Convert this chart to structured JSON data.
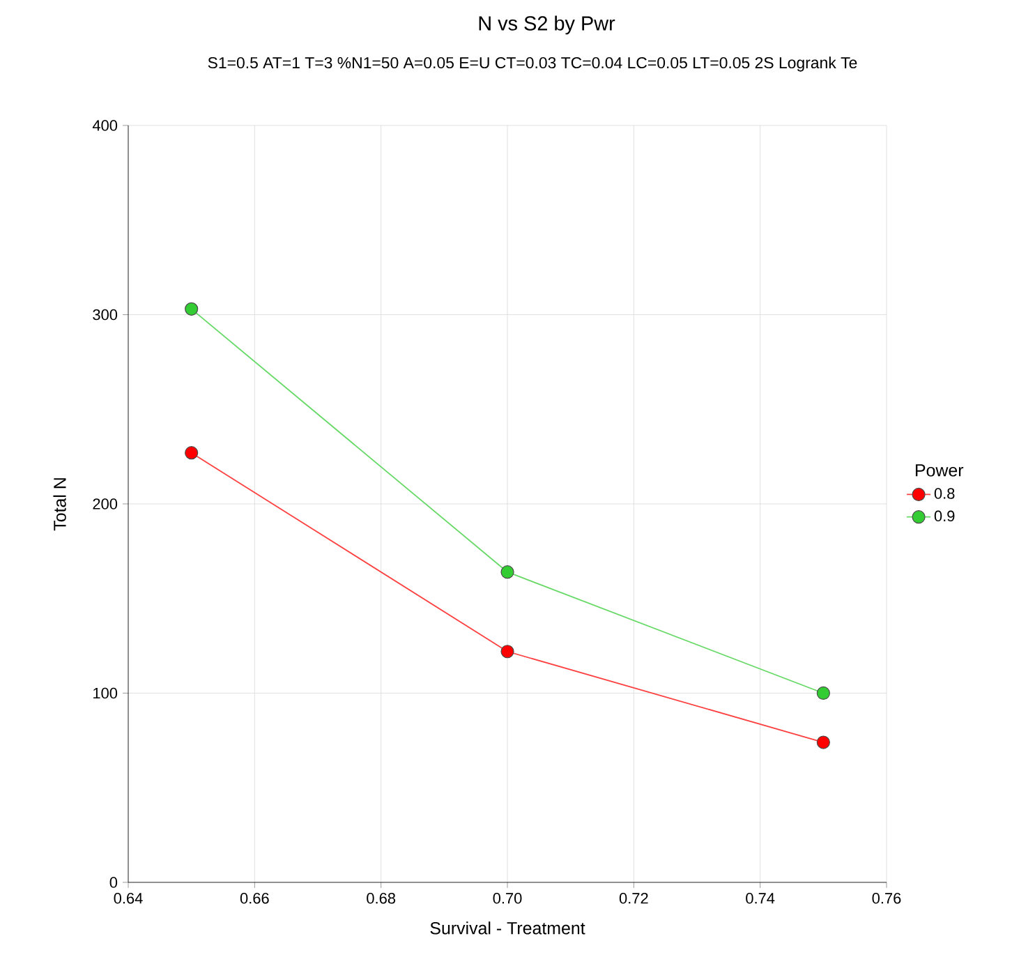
{
  "chart_data": {
    "type": "line",
    "title": "N vs S2 by Pwr",
    "subtitle": "S1=0.5 AT=1 T=3 %N1=50 A=0.05 E=U CT=0.03 TC=0.04 LC=0.05 LT=0.05 2S Logrank Te",
    "xlabel": "Survival - Treatment",
    "ylabel": "Total N",
    "legend_title": "Power",
    "x": [
      0.65,
      0.7,
      0.75
    ],
    "series": [
      {
        "name": "0.8",
        "color": "#ff0000",
        "values": [
          227,
          122,
          74
        ]
      },
      {
        "name": "0.9",
        "color": "#33cc33",
        "values": [
          303,
          164,
          100
        ]
      }
    ],
    "xlim": [
      0.64,
      0.76
    ],
    "xticks": [
      0.64,
      0.66,
      0.68,
      {
        "value": 0.7,
        "label": "0.70"
      },
      0.72,
      0.74,
      0.76
    ],
    "ylim": [
      0,
      400
    ],
    "yticks": [
      0,
      100,
      200,
      300,
      400
    ],
    "grid": true,
    "legend": "right",
    "marker": "circle",
    "line_style": "solid"
  }
}
